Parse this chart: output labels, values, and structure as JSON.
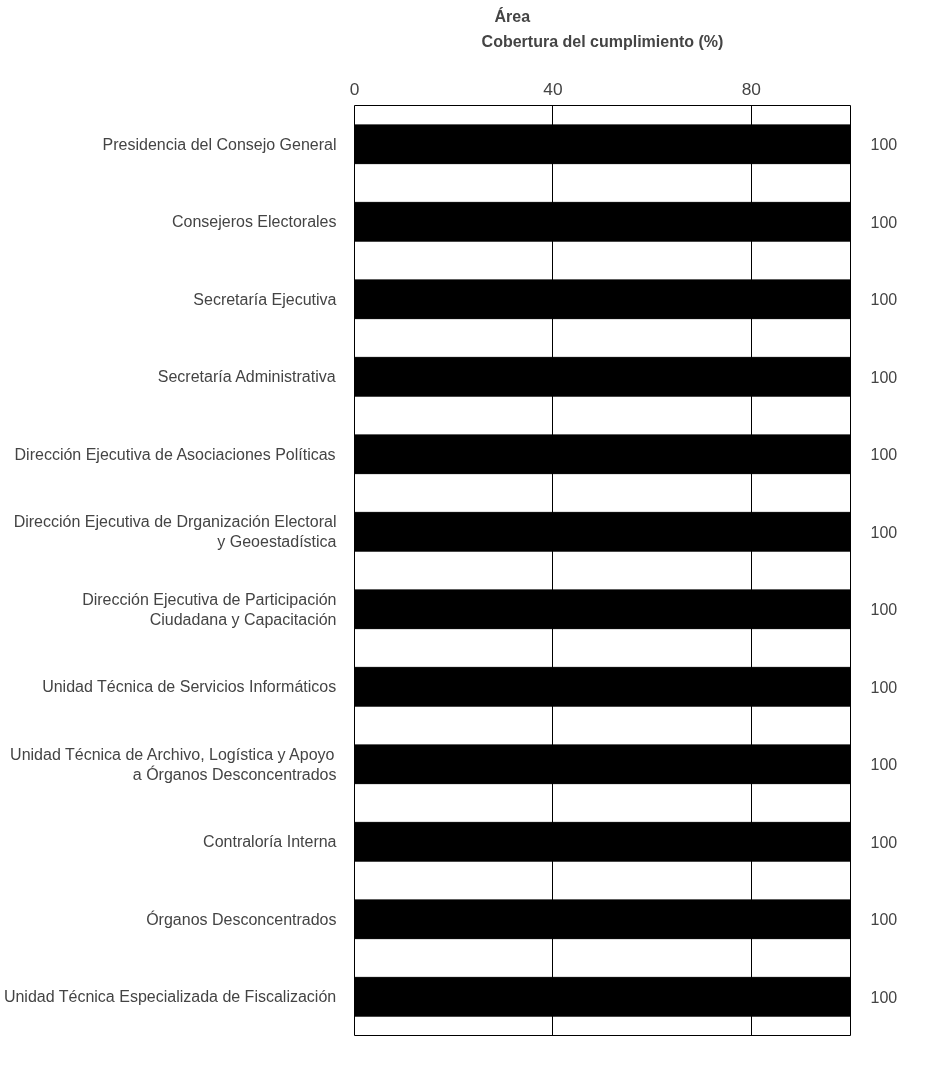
{
  "chart_data": {
    "type": "bar",
    "orientation": "horizontal",
    "xlabel": "Cobertura del cumplimiento (%)",
    "ylabel": "Área",
    "categories": [
      "Presidencia del Consejo General",
      "Consejeros Electorales",
      "Secretaría Ejecutiva",
      "Secretaría Administrativa",
      "Dirección Ejecutiva de Asociaciones Políticas",
      "Dirección Ejecutiva de Drganización Electoral y Geoestadística",
      "Dirección Ejecutiva de Participación Ciudadana y Capacitación",
      "Unidad Técnica de Servicios Informáticos",
      "Unidad Técnica de Archivo, Logística y Apoyo a Órganos Desconcentrados",
      "Contraloría Interna",
      "Órganos Desconcentrados",
      "Unidad Técnica Especializada de Fiscalización"
    ],
    "values": [
      100,
      100,
      100,
      100,
      100,
      100,
      100,
      100,
      100,
      100,
      100,
      100
    ],
    "color": "#000000",
    "data_labels": true,
    "xlim": [
      0,
      100
    ],
    "xticks": [
      0,
      40,
      80
    ],
    "grid": "x"
  }
}
